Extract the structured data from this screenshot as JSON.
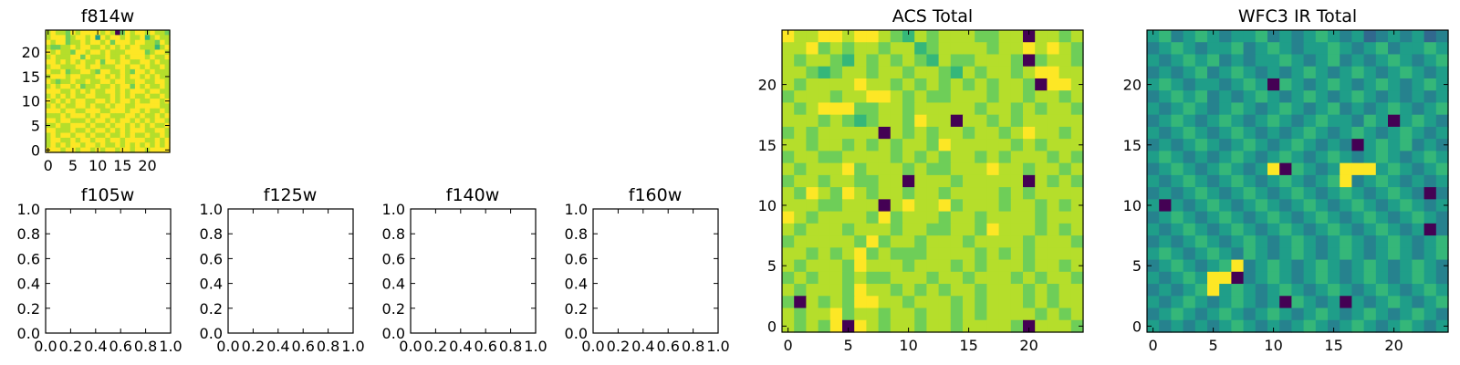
{
  "figure": {
    "background": "#ffffff",
    "colormap": [
      "#440154",
      "#31688e",
      "#26828e",
      "#1f9e89",
      "#35b779",
      "#6ece58",
      "#b5de2b",
      "#fde725"
    ]
  },
  "chart_data": [
    {
      "id": "f814w",
      "type": "heatmap",
      "title": "f814w",
      "xlim": [
        -0.5,
        24.5
      ],
      "ylim": [
        -0.5,
        24.5
      ],
      "xticks": [
        0,
        5,
        10,
        15,
        20
      ],
      "yticks": [
        0,
        5,
        10,
        15,
        20
      ],
      "grid": false,
      "rows": 25,
      "cols": 25,
      "row_order": "top-to-bottom",
      "values": [
        "6766576777767605767767665",
        "6777567767376776766746766",
        "7677566767767577767766576",
        "6556676776676767677666467",
        "7676657767767666777756776",
        "6766677576667667677767667",
        "7767676766757767766776766",
        "6776667767766677677676676",
        "7667566776577667657767666",
        "6777677666776767677676766",
        "7656676676677677667766776",
        "6767767566766767757676676",
        "7776676767667767677767766",
        "6767676677666767676676676",
        "7676767766776767767667767",
        "6767667767667677667777766",
        "7776776677766777677676676",
        "6667677767677666776766767",
        "7767766676776767767676776",
        "6676677767667677676767667",
        "7766676676776767677766776",
        "6767767767667667676676676",
        "6776676776776776777766767",
        "6767677677676676767676767",
        "7776776776767767767767777"
      ]
    },
    {
      "id": "f105w",
      "type": "empty",
      "title": "f105w",
      "xlim": [
        0,
        1
      ],
      "ylim": [
        0,
        1
      ],
      "xticks": [
        "0.0",
        "0.2",
        "0.4",
        "0.6",
        "0.8",
        "1.0"
      ],
      "yticks": [
        "0.0",
        "0.2",
        "0.4",
        "0.6",
        "0.8",
        "1.0"
      ]
    },
    {
      "id": "f125w",
      "type": "empty",
      "title": "f125w",
      "xlim": [
        0,
        1
      ],
      "ylim": [
        0,
        1
      ],
      "xticks": [
        "0.0",
        "0.2",
        "0.4",
        "0.6",
        "0.8",
        "1.0"
      ],
      "yticks": [
        "0.0",
        "0.2",
        "0.4",
        "0.6",
        "0.8",
        "1.0"
      ]
    },
    {
      "id": "f140w",
      "type": "empty",
      "title": "f140w",
      "xlim": [
        0,
        1
      ],
      "ylim": [
        0,
        1
      ],
      "xticks": [
        "0.0",
        "0.2",
        "0.4",
        "0.6",
        "0.8",
        "1.0"
      ],
      "yticks": [
        "0.0",
        "0.2",
        "0.4",
        "0.6",
        "0.8",
        "1.0"
      ]
    },
    {
      "id": "f160w",
      "type": "empty",
      "title": "f160w",
      "xlim": [
        0,
        1
      ],
      "ylim": [
        0,
        1
      ],
      "xticks": [
        "0.0",
        "0.2",
        "0.4",
        "0.6",
        "0.8",
        "1.0"
      ],
      "yticks": [
        "0.0",
        "0.2",
        "0.4",
        "0.6",
        "0.8",
        "1.0"
      ]
    },
    {
      "id": "acs-total",
      "type": "heatmap",
      "title": "ACS Total",
      "xlim": [
        -0.5,
        24.5
      ],
      "ylim": [
        -0.5,
        24.5
      ],
      "xticks": [
        0,
        5,
        10,
        15,
        20
      ],
      "yticks": [
        0,
        5,
        10,
        15,
        20
      ],
      "grid": false,
      "rows": 25,
      "cols": 25,
      "row_order": "top-to-bottom",
      "values": [
        "7667767765465666556606656",
        "6675656656645666656676765",
        "6566546565654655666505665",
        "6654566566566546566567766",
        "6566667665656565656650776",
        "5666566776565566656656656",
        "6567775566566666566565665",
        "6665654566576606656566666",
        "5656666606565665665676656",
        "6656656565665766666565666",
        "5665566665656566565666565",
        "6566675666565566676656656",
        "5665665566066656666606565",
        "6576576566566566665656666",
        "6665566606766756665665656",
        "7656666575666566566665666",
        "6566656665665566576665656",
        "5666665756656665666656665",
        "6656567565556666565656666",
        "6566657666566656566656656",
        "5656656556665665666565665",
        "6566657665656566566656566",
        "5065657766566656566656566",
        "6566756656656656566665656",
        "6565707656656656666506665"
      ]
    },
    {
      "id": "wfc3-ir-total",
      "type": "heatmap",
      "title": "WFC3 IR Total",
      "xlim": [
        -0.5,
        24.5
      ],
      "ylim": [
        -0.5,
        24.5
      ],
      "xticks": [
        0,
        5,
        10,
        15,
        20
      ],
      "yticks": [
        0,
        5,
        10,
        15,
        20
      ],
      "grid": false,
      "rows": 25,
      "cols": 25,
      "row_order": "top-to-bottom",
      "values": [
        "3423432334232343231232312",
        "2343233423432334323423343",
        "3234342323343234232343234",
        "2323423432323432343234323",
        "3432332343043234323432343",
        "2343423234323432343232323",
        "3234323432343234232343234",
        "2343234323432343324303432",
        "3234323432323432343234323",
        "2323432343234323203434232",
        "3432323432343234323432343",
        "2343234323704323777343234",
        "3234323432343234723432323",
        "2323432343234323432343202",
        "3032343234323432343234323",
        "2343234323432343234323432",
        "3234323432343234323432302",
        "2323432343234323432343234",
        "3432343243234323432343234",
        "2343234723432343234323432",
        "3234377023432343234323432",
        "2323473432343234323432343",
        "3234323432304323032343234",
        "2343234323432343234323432",
        "3232323432323432343234323"
      ]
    }
  ]
}
